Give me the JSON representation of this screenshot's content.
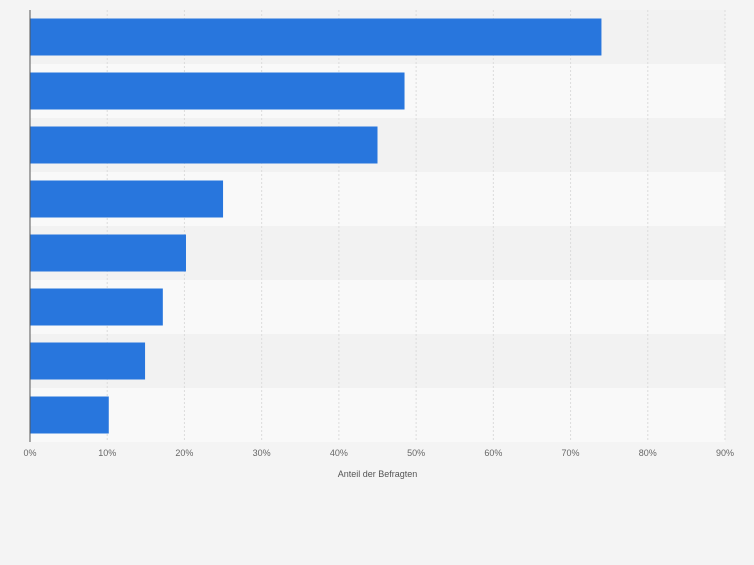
{
  "chart_data": {
    "type": "bar",
    "orientation": "horizontal",
    "categories": [
      "",
      "",
      "",
      "",
      "",
      "",
      "",
      ""
    ],
    "values": [
      74,
      48.5,
      45,
      25,
      20.2,
      17.2,
      14.9,
      10.2
    ],
    "xlabel": "Anteil der Befragten",
    "ylabel": "",
    "xlim": [
      0,
      90
    ],
    "x_ticks": [
      0,
      10,
      20,
      30,
      40,
      50,
      60,
      70,
      80,
      90
    ],
    "x_tick_labels": [
      "0%",
      "10%",
      "20%",
      "30%",
      "40%",
      "50%",
      "60%",
      "70%",
      "80%",
      "90%"
    ],
    "grid": true,
    "legend": "none"
  },
  "colors": {
    "bar": "#2876dd",
    "page_background": "#f4f4f4",
    "band_light": "#f9f9f9",
    "band_dark": "#f2f2f2",
    "grid": "#dcdcdc",
    "axis": "#555555"
  }
}
